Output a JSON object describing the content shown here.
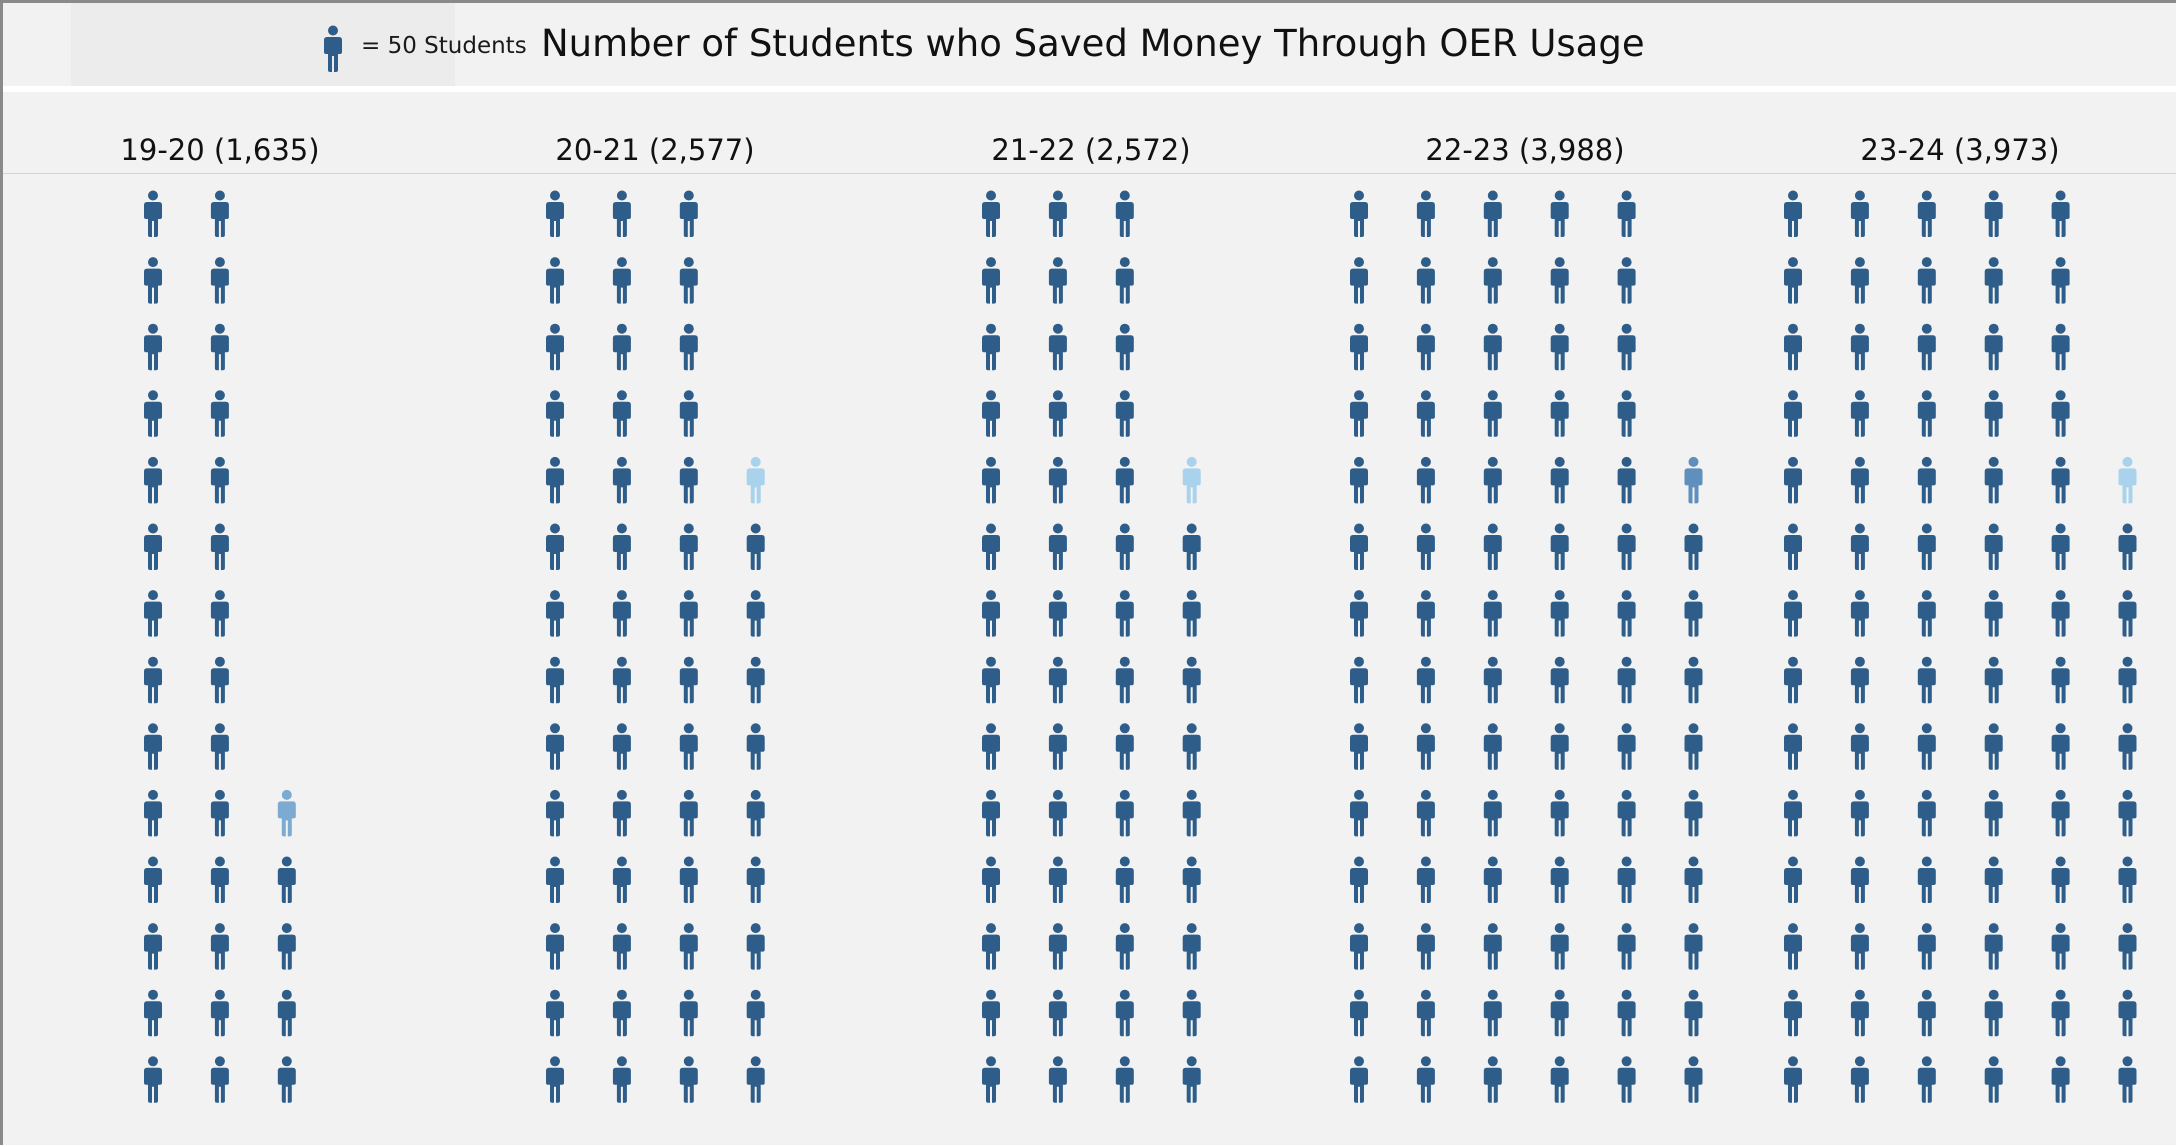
{
  "legend": {
    "icon": "person-icon",
    "text": "= 50 Students"
  },
  "chart_data": {
    "type": "pictograph",
    "title": "Number of Students who Saved Money Through OER Usage",
    "unit_label": "= 50 Students",
    "students_per_icon": 50,
    "icon": "person-icon",
    "icons_per_column": 14,
    "colors": {
      "full": "#2e5d89",
      "partial_dark": "#5f8fbc",
      "partial_mid": "#7daad0",
      "partial_light": "#a9d3ec"
    },
    "categories": [
      "19-20",
      "20-21",
      "21-22",
      "22-23",
      "23-24"
    ],
    "labels": [
      "19-20 (1,635)",
      "20-21 (2,577)",
      "21-22 (2,572)",
      "22-23 (3,988)",
      "23-24 (3,973)"
    ],
    "values": [
      1635,
      2577,
      2572,
      3988,
      3973
    ],
    "icon_counts": [
      33,
      52,
      52,
      80,
      80
    ],
    "partial_icon_colors": [
      "partial_mid",
      "partial_light",
      "partial_light",
      "partial_dark",
      "partial_light"
    ]
  }
}
